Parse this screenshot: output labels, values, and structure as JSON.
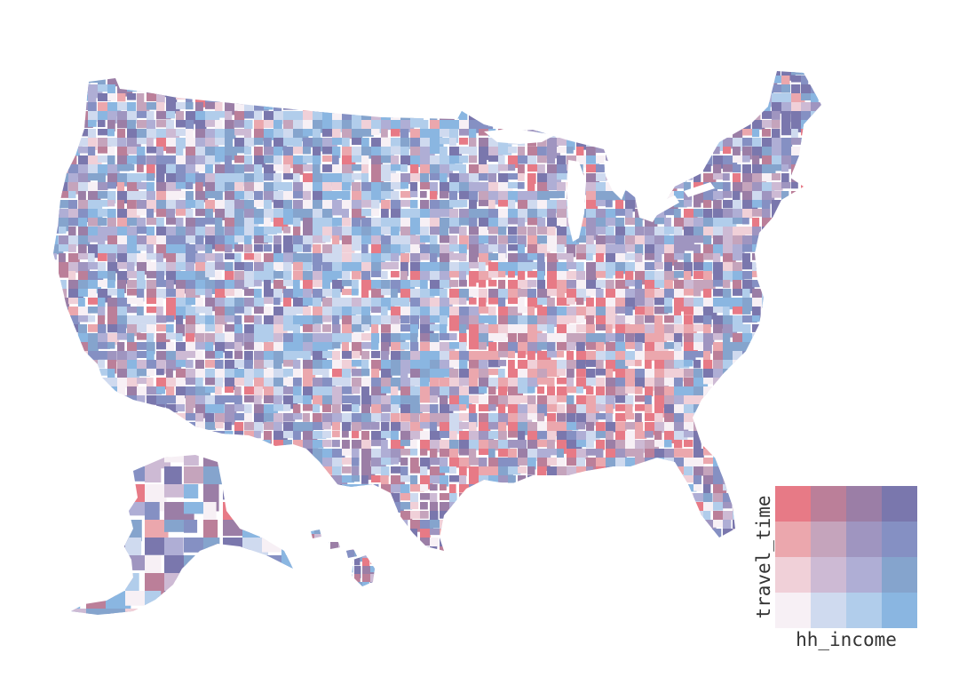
{
  "legend": {
    "x_label": "hh_income",
    "y_label": "travel_time",
    "rows": [
      [
        "#e77a86",
        "#bb7f99",
        "#9b7ea6",
        "#7a77ad"
      ],
      [
        "#eba7ad",
        "#c5a4bc",
        "#9f95c0",
        "#8590c3"
      ],
      [
        "#f0d0d8",
        "#cdbad4",
        "#afaed5",
        "#85a4cd"
      ],
      [
        "#f7f0f5",
        "#cfdaef",
        "#b1cdeb",
        "#8ab6e1"
      ]
    ]
  },
  "palette": {
    "low_income_long_travel": "#e77a86",
    "high_income_long_travel": "#7a77ad",
    "low_income_short_travel": "#f7f0f5",
    "high_income_short_travel": "#8ab6e1"
  }
}
